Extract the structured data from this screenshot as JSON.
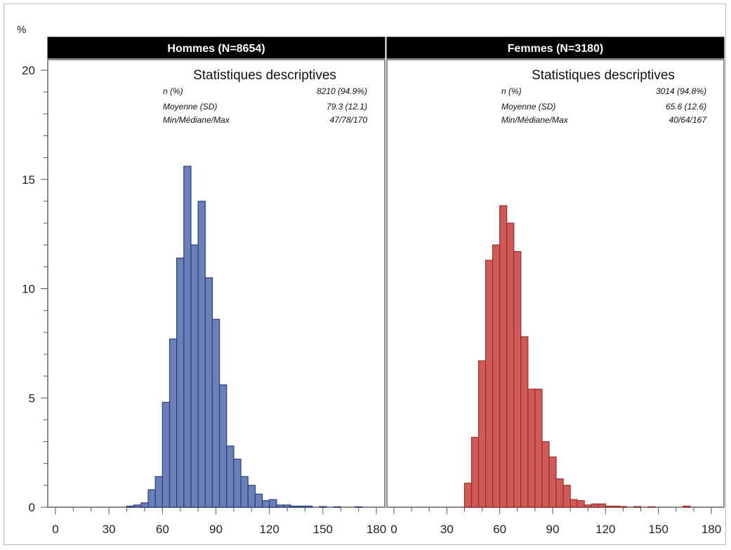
{
  "chart_data": [
    {
      "type": "bar",
      "panel_label": "Hommes (N=8654)",
      "ylabel": "%",
      "xlim": [
        0,
        180
      ],
      "ylim": [
        0,
        20
      ],
      "xticks": [
        "0",
        "30",
        "60",
        "90",
        "120",
        "150",
        "180"
      ],
      "yticks": [
        "0",
        "5",
        "10",
        "15",
        "20"
      ],
      "color": "#6a80b9",
      "edge_color": "#2c3e7a",
      "bin_width": 4,
      "bins": [
        {
          "x": 40,
          "y": 0.05
        },
        {
          "x": 44,
          "y": 0.1
        },
        {
          "x": 48,
          "y": 0.2
        },
        {
          "x": 52,
          "y": 0.8
        },
        {
          "x": 56,
          "y": 1.4
        },
        {
          "x": 60,
          "y": 4.8
        },
        {
          "x": 64,
          "y": 7.7
        },
        {
          "x": 68,
          "y": 11.4
        },
        {
          "x": 72,
          "y": 15.6
        },
        {
          "x": 76,
          "y": 12.0
        },
        {
          "x": 80,
          "y": 14.0
        },
        {
          "x": 84,
          "y": 10.5
        },
        {
          "x": 88,
          "y": 8.6
        },
        {
          "x": 92,
          "y": 5.6
        },
        {
          "x": 96,
          "y": 2.8
        },
        {
          "x": 100,
          "y": 2.2
        },
        {
          "x": 104,
          "y": 1.4
        },
        {
          "x": 108,
          "y": 1.0
        },
        {
          "x": 112,
          "y": 0.6
        },
        {
          "x": 116,
          "y": 0.3
        },
        {
          "x": 120,
          "y": 0.35
        },
        {
          "x": 124,
          "y": 0.1
        },
        {
          "x": 128,
          "y": 0.1
        },
        {
          "x": 132,
          "y": 0.05
        },
        {
          "x": 136,
          "y": 0.05
        },
        {
          "x": 140,
          "y": 0.05
        },
        {
          "x": 148,
          "y": 0.03
        },
        {
          "x": 156,
          "y": 0.02
        },
        {
          "x": 168,
          "y": 0.02
        }
      ],
      "stats": {
        "title": "Statistiques descriptives",
        "rows": [
          {
            "label": "n (%)",
            "value": "8210 (94.9%)"
          },
          {
            "label": "Moyenne (SD)",
            "value": "79.3 (12.1)"
          },
          {
            "label": "Min/Médiane/Max",
            "value": "47/78/170"
          }
        ]
      }
    },
    {
      "type": "bar",
      "panel_label": "Femmes (N=3180)",
      "xlim": [
        0,
        180
      ],
      "ylim": [
        0,
        20
      ],
      "xticks": [
        "0",
        "30",
        "60",
        "90",
        "120",
        "150",
        "180"
      ],
      "color": "#d05a58",
      "edge_color": "#9b2c2a",
      "bin_width": 4,
      "bins": [
        {
          "x": 40,
          "y": 1.1
        },
        {
          "x": 44,
          "y": 3.2
        },
        {
          "x": 48,
          "y": 6.7
        },
        {
          "x": 52,
          "y": 11.3
        },
        {
          "x": 56,
          "y": 12.0
        },
        {
          "x": 60,
          "y": 13.8
        },
        {
          "x": 64,
          "y": 13.0
        },
        {
          "x": 68,
          "y": 11.7
        },
        {
          "x": 72,
          "y": 7.8
        },
        {
          "x": 76,
          "y": 5.4
        },
        {
          "x": 80,
          "y": 5.4
        },
        {
          "x": 84,
          "y": 3.0
        },
        {
          "x": 88,
          "y": 2.3
        },
        {
          "x": 92,
          "y": 1.3
        },
        {
          "x": 96,
          "y": 1.0
        },
        {
          "x": 100,
          "y": 0.35
        },
        {
          "x": 104,
          "y": 0.3
        },
        {
          "x": 108,
          "y": 0.1
        },
        {
          "x": 112,
          "y": 0.15
        },
        {
          "x": 116,
          "y": 0.15
        },
        {
          "x": 120,
          "y": 0.05
        },
        {
          "x": 124,
          "y": 0.05
        },
        {
          "x": 128,
          "y": 0.03
        },
        {
          "x": 136,
          "y": 0.03
        },
        {
          "x": 144,
          "y": 0.02
        },
        {
          "x": 164,
          "y": 0.05
        }
      ],
      "stats": {
        "title": "Statistiques descriptives",
        "rows": [
          {
            "label": "n (%)",
            "value": "3014 (94.8%)"
          },
          {
            "label": "Moyenne (SD)",
            "value": "65.6 (12.6)"
          },
          {
            "label": "Min/Médiane/Max",
            "value": "40/64/167"
          }
        ]
      }
    }
  ]
}
